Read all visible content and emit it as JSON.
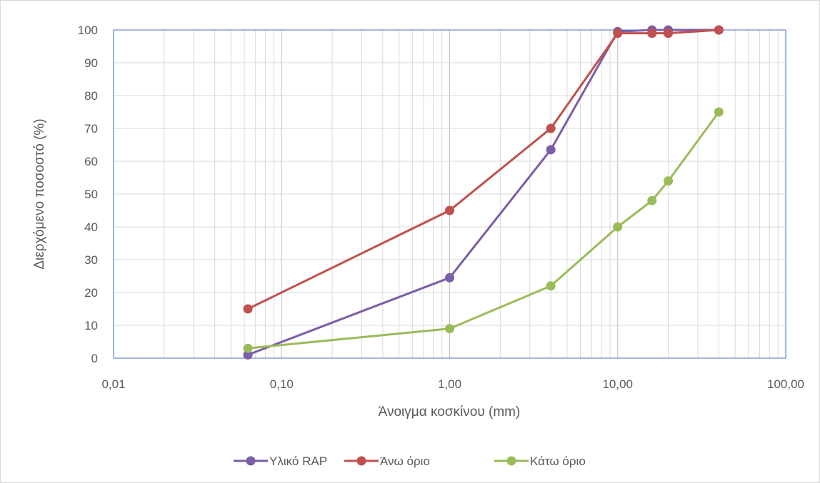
{
  "chart_data": {
    "type": "line",
    "x_scale": "log",
    "xlabel": "Άνοιγμα κοσκίνου (mm)",
    "ylabel": "Διερχόμενο ποσοστό (%)",
    "xlim": [
      0.01,
      100
    ],
    "ylim": [
      0,
      100
    ],
    "x_ticks": [
      0.01,
      0.1,
      1,
      10,
      100
    ],
    "x_tick_labels": [
      "0,01",
      "0,10",
      "1,00",
      "10,00",
      "100,00"
    ],
    "y_ticks": [
      0,
      10,
      20,
      30,
      40,
      50,
      60,
      70,
      80,
      90,
      100
    ],
    "y_tick_labels": [
      "0",
      "10",
      "20",
      "30",
      "40",
      "50",
      "60",
      "70",
      "80",
      "90",
      "100"
    ],
    "grid": true,
    "legend_position": "bottom",
    "series": [
      {
        "name": "Υλικό RAP",
        "color": "#7b5ea7",
        "x": [
          0.063,
          1,
          4,
          10,
          16,
          20,
          40
        ],
        "y": [
          1,
          24.5,
          63.5,
          99.5,
          100,
          100,
          100
        ]
      },
      {
        "name": "Άνω όριο",
        "color": "#c0504d",
        "x": [
          0.063,
          1,
          4,
          10,
          16,
          20,
          40
        ],
        "y": [
          15,
          45,
          70,
          99,
          99,
          99,
          100
        ]
      },
      {
        "name": "Κάτω όριο",
        "color": "#9bbb59",
        "x": [
          0.063,
          1,
          4,
          10,
          16,
          20,
          40
        ],
        "y": [
          3,
          9,
          22,
          40,
          48,
          54,
          75
        ]
      }
    ]
  }
}
